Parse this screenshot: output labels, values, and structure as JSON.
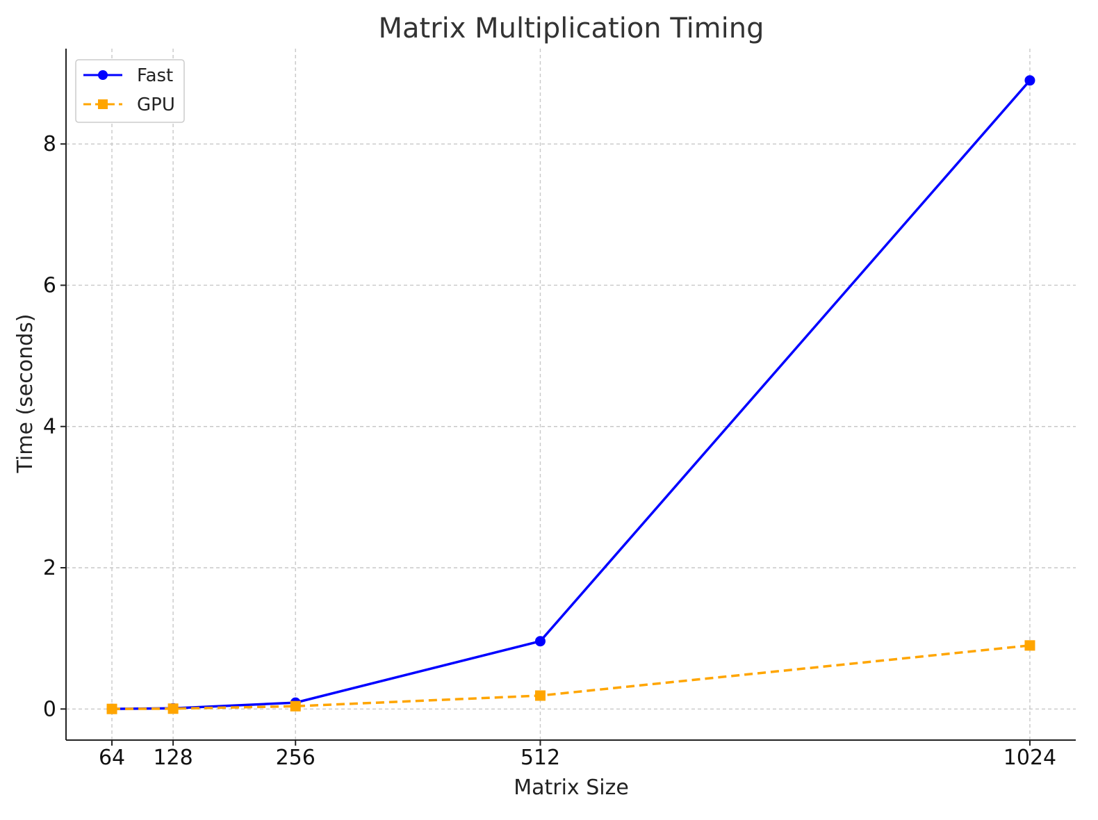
{
  "chart_data": {
    "type": "line",
    "title": "Matrix Multiplication Timing",
    "xlabel": "Matrix Size",
    "ylabel": "Time (seconds)",
    "x": [
      64,
      128,
      256,
      512,
      1024
    ],
    "x_tick_labels": [
      "64",
      "128",
      "256",
      "512",
      "1024"
    ],
    "xlim": [
      16,
      1072
    ],
    "ylim": [
      -0.44,
      9.35
    ],
    "y_ticks": [
      0,
      2,
      4,
      6,
      8
    ],
    "y_tick_labels": [
      "0",
      "2",
      "4",
      "6",
      "8"
    ],
    "grid": true,
    "legend_position": "top-left",
    "series": [
      {
        "name": "Fast",
        "values": [
          0.001,
          0.01,
          0.09,
          0.96,
          8.9
        ],
        "color": "#0000ff",
        "line_style": "solid",
        "marker": "circle"
      },
      {
        "name": "GPU",
        "values": [
          0.001,
          0.005,
          0.04,
          0.19,
          0.9
        ],
        "color": "#ffa500",
        "line_style": "dashed",
        "marker": "square"
      }
    ]
  }
}
